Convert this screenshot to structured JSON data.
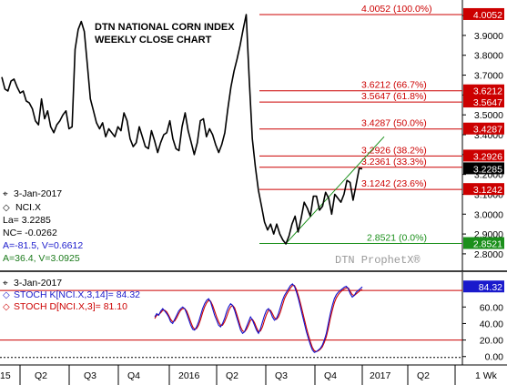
{
  "colors": {
    "price": "#000000",
    "fib": "#cc0000",
    "fib_label": "#cc0000",
    "last_bg": "#000000",
    "trend": "#1a8f1a",
    "stoch_k": "#1010cc",
    "stoch_d": "#cc0000",
    "info_blue": "#1a1acc",
    "info_green": "#1a7a1a",
    "k_badge": "#1a1acc"
  },
  "main": {
    "title_line1": "DTN NATIONAL CORN INDEX",
    "title_line2": "WEEKLY CLOSE CHART",
    "watermark": "DTN ProphetX®"
  },
  "info": {
    "date": "3-Jan-2017",
    "symbol": "NCI.X",
    "last": "La= 3.2285",
    "net_change": "NC= -0.0262",
    "a_v": "A=-81.5, V=0.6612",
    "a_v2": "A=36.4, V=3.0925"
  },
  "stoch_info": {
    "date": "3-Jan-2017",
    "k_label": "STOCH K[NCI.X,3,14]= 84.32",
    "d_label": "STOCH D[NCI.X,3]= 81.10",
    "k_value": "84.32"
  },
  "chart_data": [
    {
      "type": "line",
      "title": "DTN NATIONAL CORN INDEX WEEKLY CLOSE CHART",
      "y_range": [
        2.74,
        4.06
      ],
      "y_ticks": [
        "4.0000",
        "3.9000",
        "3.8000",
        "3.7000",
        "3.6000",
        "3.5000",
        "3.4000",
        "3.3000",
        "3.2000",
        "3.1000",
        "3.0000",
        "2.9000",
        "2.8000"
      ],
      "y_tick_values": [
        4.0,
        3.9,
        3.8,
        3.7,
        3.6,
        3.5,
        3.4,
        3.3,
        3.2,
        3.1,
        3.0,
        2.9,
        2.8
      ],
      "x_labels": [
        "15",
        "Q2",
        "Q3",
        "Q4",
        "2016",
        "Q2",
        "Q3",
        "Q4",
        "2017",
        "Q2",
        "1 Wk"
      ],
      "series": [
        {
          "values": [
            3.69,
            3.63,
            3.62,
            3.67,
            3.68,
            3.64,
            3.61,
            3.62,
            3.57,
            3.56,
            3.53,
            3.47,
            3.45,
            3.58,
            3.48,
            3.52,
            3.44,
            3.41,
            3.45,
            3.47,
            3.5,
            3.52,
            3.43,
            3.44,
            3.83,
            3.93,
            3.97,
            3.92,
            3.75,
            3.58,
            3.52,
            3.46,
            3.43,
            3.46,
            3.39,
            3.43,
            3.41,
            3.39,
            3.44,
            3.42,
            3.51,
            3.47,
            3.38,
            3.34,
            3.36,
            3.44,
            3.39,
            3.34,
            3.33,
            3.42,
            3.37,
            3.31,
            3.36,
            3.4,
            3.41,
            3.47,
            3.38,
            3.33,
            3.32,
            3.44,
            3.51,
            3.42,
            3.36,
            3.3,
            3.36,
            3.47,
            3.48,
            3.39,
            3.43,
            3.4,
            3.35,
            3.31,
            3.35,
            3.41,
            3.53,
            3.64,
            3.72,
            3.78,
            3.85,
            3.93,
            4.0052,
            3.68,
            3.38,
            3.24,
            3.12,
            3.04,
            2.96,
            2.92,
            2.95,
            2.9,
            2.95,
            2.9,
            2.87,
            2.85,
            2.89,
            2.95,
            2.99,
            2.91,
            2.98,
            3.06,
            3.03,
            2.99,
            3.09,
            3.09,
            3.02,
            3.04,
            3.11,
            3.08,
            3.0,
            3.1,
            3.08,
            3.06,
            3.1,
            3.17,
            3.16,
            3.07,
            3.15,
            3.23,
            3.2285
          ]
        }
      ],
      "fib_levels": [
        {
          "value": 4.0052,
          "label": "4.0052 (100.0%)",
          "badge": "4.0052"
        },
        {
          "value": 3.6212,
          "label": "3.6212 (66.7%)",
          "badge": "3.6212"
        },
        {
          "value": 3.5647,
          "label": "3.5647 (61.8%)",
          "badge": "3.5647"
        },
        {
          "value": 3.4287,
          "label": "3.4287 (50.0%)",
          "badge": "3.4287"
        },
        {
          "value": 3.2926,
          "label": "3.2926 (38.2%)",
          "badge": "3.2926"
        },
        {
          "value": 3.2361,
          "label": "3.2361 (33.3%)",
          "badge": ""
        },
        {
          "value": 3.1242,
          "label": "3.1242 (23.6%)",
          "badge": "3.1242"
        },
        {
          "value": 2.8521,
          "label": "2.8521 (0.0%)",
          "badge": "2.8521"
        }
      ],
      "last_value": 3.2285,
      "last_badge": "3.2285",
      "trendline": [
        {
          "x_index": 93,
          "y": 2.8521
        },
        {
          "x_index": 118,
          "y": 3.28
        }
      ]
    },
    {
      "type": "line",
      "title": "STOCH",
      "y_range": [
        -8,
        100
      ],
      "y_ticks": [
        "60.00",
        "40.00",
        "20.00",
        "0.00"
      ],
      "y_tick_values": [
        60,
        40,
        20,
        0
      ],
      "ref_lines": [
        80,
        20
      ],
      "series": [
        {
          "name": "STOCH K[NCI.X,3,14]",
          "values": [
            48,
            52,
            50,
            55,
            58,
            55,
            52,
            48,
            42,
            40,
            45,
            50,
            55,
            58,
            60,
            58,
            52,
            45,
            38,
            33,
            32,
            36,
            42,
            50,
            58,
            64,
            68,
            70,
            66,
            58,
            50,
            44,
            38,
            36,
            40,
            46,
            54,
            60,
            64,
            62,
            56,
            48,
            40,
            32,
            28,
            30,
            36,
            42,
            48,
            44,
            38,
            32,
            28,
            34,
            42,
            50,
            56,
            58,
            54,
            48,
            44,
            46,
            52,
            60,
            68,
            74,
            78,
            82,
            86,
            88,
            85,
            78,
            70,
            60,
            50,
            40,
            30,
            22,
            14,
            8,
            5,
            6,
            8,
            10,
            14,
            20,
            28,
            40,
            52,
            62,
            70,
            75,
            78,
            80,
            82,
            84,
            85,
            82,
            76,
            72,
            74,
            78,
            80,
            82,
            84.32
          ]
        },
        {
          "name": "STOCH D[NCI.X,3]",
          "values": [
            46,
            50,
            51,
            53,
            56,
            56,
            54,
            50,
            45,
            42,
            43,
            47,
            52,
            56,
            58,
            58,
            55,
            49,
            42,
            36,
            33,
            34,
            38,
            45,
            53,
            60,
            65,
            68,
            67,
            62,
            55,
            48,
            42,
            38,
            38,
            42,
            48,
            55,
            60,
            62,
            59,
            52,
            44,
            36,
            31,
            30,
            33,
            38,
            44,
            45,
            41,
            35,
            30,
            31,
            36,
            44,
            51,
            56,
            56,
            52,
            47,
            45,
            48,
            54,
            62,
            70,
            75,
            79,
            83,
            86,
            86,
            81,
            74,
            65,
            55,
            45,
            35,
            26,
            18,
            11,
            7,
            6,
            7,
            9,
            12,
            17,
            24,
            34,
            46,
            56,
            65,
            71,
            75,
            78,
            80,
            82,
            83,
            83,
            79,
            75,
            74,
            76,
            78,
            80,
            81.1
          ]
        }
      ]
    }
  ]
}
